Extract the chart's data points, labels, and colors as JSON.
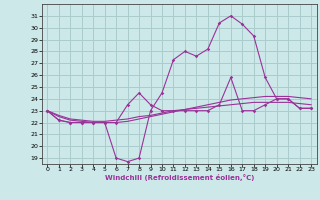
{
  "hours": [
    0,
    1,
    2,
    3,
    4,
    5,
    6,
    7,
    8,
    9,
    10,
    11,
    12,
    13,
    14,
    15,
    16,
    17,
    18,
    19,
    20,
    21,
    22,
    23
  ],
  "windchill": [
    23,
    22.2,
    22,
    22,
    22,
    22,
    19,
    18.7,
    19,
    23,
    24.5,
    27.3,
    28,
    27.6,
    28.2,
    30.4,
    31,
    30.3,
    29.3,
    25.8,
    24,
    24,
    23.2,
    23.2
  ],
  "temp_actual": [
    23,
    22.2,
    22,
    22,
    22,
    22,
    22,
    23.5,
    24.5,
    23.5,
    23,
    23,
    23,
    23,
    23,
    23.5,
    25.8,
    23,
    23,
    23.5,
    24,
    24,
    23.2,
    23.2
  ],
  "line3": [
    23,
    22.5,
    22.2,
    22.1,
    22.0,
    22.0,
    22.0,
    22.1,
    22.3,
    22.5,
    22.7,
    22.9,
    23.1,
    23.3,
    23.5,
    23.7,
    23.9,
    24.0,
    24.1,
    24.2,
    24.2,
    24.2,
    24.1,
    24.0
  ],
  "line4": [
    23,
    22.6,
    22.3,
    22.2,
    22.1,
    22.1,
    22.2,
    22.3,
    22.5,
    22.6,
    22.8,
    23.0,
    23.1,
    23.2,
    23.3,
    23.4,
    23.5,
    23.6,
    23.7,
    23.7,
    23.7,
    23.7,
    23.6,
    23.5
  ],
  "background_color": "#cce8e8",
  "grid_color": "#aacccc",
  "line_color": "#993399",
  "xlabel": "Windchill (Refroidissement éolien,°C)",
  "yticks": [
    19,
    20,
    21,
    22,
    23,
    24,
    25,
    26,
    27,
    28,
    29,
    30,
    31
  ],
  "xticks": [
    0,
    1,
    2,
    3,
    4,
    5,
    6,
    7,
    8,
    9,
    10,
    11,
    12,
    13,
    14,
    15,
    16,
    17,
    18,
    19,
    20,
    21,
    22,
    23
  ],
  "ylim": [
    18.5,
    32.0
  ],
  "xlim": [
    -0.5,
    23.5
  ]
}
